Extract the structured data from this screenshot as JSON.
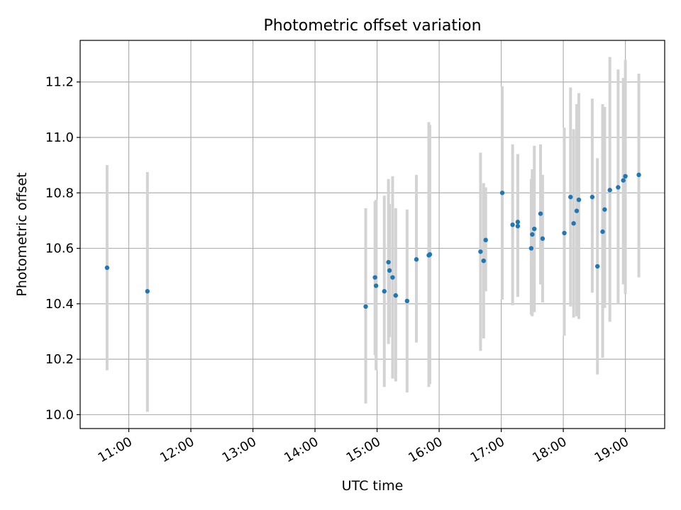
{
  "chart_data": {
    "type": "scatter",
    "title": "Photometric offset variation",
    "xlabel": "UTC time",
    "ylabel": "Photometric offset",
    "xlim": [
      "10:13",
      "19:38"
    ],
    "ylim": [
      9.95,
      11.35
    ],
    "x_ticks": [
      "11:00",
      "12:00",
      "13:00",
      "14:00",
      "15:00",
      "16:00",
      "17:00",
      "18:00",
      "19:00"
    ],
    "y_ticks": [
      "10.0",
      "10.2",
      "10.4",
      "10.6",
      "10.8",
      "11.0",
      "11.2"
    ],
    "grid": true,
    "legend": "none",
    "colors": {
      "points": "#1f77b4",
      "errorbars": "#d3d3d3",
      "grid": "#b0b0b0"
    },
    "points": [
      {
        "x": "10:39",
        "y": 10.53,
        "ylow": 10.16,
        "yhigh": 10.9
      },
      {
        "x": "11:18",
        "y": 10.445,
        "ylow": 10.01,
        "yhigh": 10.875
      },
      {
        "x": "14:49",
        "y": 10.39,
        "ylow": 10.04,
        "yhigh": 10.745
      },
      {
        "x": "14:58",
        "y": 10.495,
        "ylow": 10.215,
        "yhigh": 10.77
      },
      {
        "x": "14:59",
        "y": 10.465,
        "ylow": 10.16,
        "yhigh": 10.775
      },
      {
        "x": "15:07",
        "y": 10.445,
        "ylow": 10.1,
        "yhigh": 10.79
      },
      {
        "x": "15:11",
        "y": 10.55,
        "ylow": 10.255,
        "yhigh": 10.85
      },
      {
        "x": "15:12",
        "y": 10.52,
        "ylow": 10.28,
        "yhigh": 10.76
      },
      {
        "x": "15:15",
        "y": 10.495,
        "ylow": 10.13,
        "yhigh": 10.86
      },
      {
        "x": "15:18",
        "y": 10.43,
        "ylow": 10.12,
        "yhigh": 10.745
      },
      {
        "x": "15:29",
        "y": 10.41,
        "ylow": 10.08,
        "yhigh": 10.74
      },
      {
        "x": "15:38",
        "y": 10.56,
        "ylow": 10.26,
        "yhigh": 10.865
      },
      {
        "x": "15:50",
        "y": 10.575,
        "ylow": 10.1,
        "yhigh": 11.055
      },
      {
        "x": "15:51",
        "y": 10.578,
        "ylow": 10.11,
        "yhigh": 11.045
      },
      {
        "x": "16:40",
        "y": 10.588,
        "ylow": 10.23,
        "yhigh": 10.945
      },
      {
        "x": "16:43",
        "y": 10.555,
        "ylow": 10.275,
        "yhigh": 10.835
      },
      {
        "x": "16:45",
        "y": 10.63,
        "ylow": 10.445,
        "yhigh": 10.82
      },
      {
        "x": "17:01",
        "y": 10.8,
        "ylow": 10.415,
        "yhigh": 11.185
      },
      {
        "x": "17:11",
        "y": 10.685,
        "ylow": 10.395,
        "yhigh": 10.975
      },
      {
        "x": "17:16",
        "y": 10.695,
        "ylow": 10.44,
        "yhigh": 10.94
      },
      {
        "x": "17:16",
        "y": 10.68,
        "ylow": 10.425,
        "yhigh": 10.935
      },
      {
        "x": "17:29",
        "y": 10.6,
        "ylow": 10.36,
        "yhigh": 10.85
      },
      {
        "x": "17:30",
        "y": 10.65,
        "ylow": 10.355,
        "yhigh": 10.885
      },
      {
        "x": "17:32",
        "y": 10.67,
        "ylow": 10.37,
        "yhigh": 10.97
      },
      {
        "x": "17:38",
        "y": 10.725,
        "ylow": 10.47,
        "yhigh": 10.975
      },
      {
        "x": "17:40",
        "y": 10.635,
        "ylow": 10.405,
        "yhigh": 10.865
      },
      {
        "x": "18:01",
        "y": 10.655,
        "ylow": 10.285,
        "yhigh": 11.035
      },
      {
        "x": "18:07",
        "y": 10.785,
        "ylow": 10.39,
        "yhigh": 11.18
      },
      {
        "x": "18:10",
        "y": 10.69,
        "ylow": 10.35,
        "yhigh": 11.03
      },
      {
        "x": "18:13",
        "y": 10.735,
        "ylow": 10.355,
        "yhigh": 11.12
      },
      {
        "x": "18:15",
        "y": 10.775,
        "ylow": 10.345,
        "yhigh": 11.16
      },
      {
        "x": "18:28",
        "y": 10.785,
        "ylow": 10.44,
        "yhigh": 11.14
      },
      {
        "x": "18:33",
        "y": 10.535,
        "ylow": 10.145,
        "yhigh": 10.925
      },
      {
        "x": "18:38",
        "y": 10.66,
        "ylow": 10.205,
        "yhigh": 11.12
      },
      {
        "x": "18:40",
        "y": 10.74,
        "ylow": 10.385,
        "yhigh": 11.11
      },
      {
        "x": "18:45",
        "y": 10.81,
        "ylow": 10.335,
        "yhigh": 11.29
      },
      {
        "x": "18:53",
        "y": 10.82,
        "ylow": 10.4,
        "yhigh": 11.245
      },
      {
        "x": "18:58",
        "y": 10.845,
        "ylow": 10.47,
        "yhigh": 11.215
      },
      {
        "x": "19:00",
        "y": 10.86,
        "ylow": 10.435,
        "yhigh": 11.28
      },
      {
        "x": "19:13",
        "y": 10.865,
        "ylow": 10.495,
        "yhigh": 11.23
      }
    ]
  }
}
